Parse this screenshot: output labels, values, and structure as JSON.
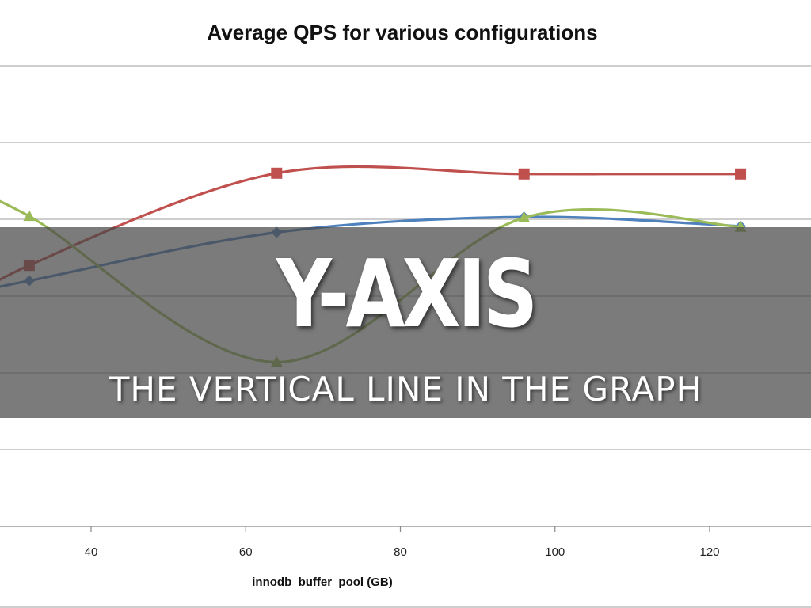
{
  "chart_data": {
    "type": "line",
    "title": "Average QPS for various configurations",
    "xlabel": "innodb_buffer_pool (GB)",
    "ylabel": "",
    "x_ticks": [
      40,
      60,
      80,
      100,
      120
    ],
    "xlim": [
      20,
      150
    ],
    "ylim": [
      0,
      7
    ],
    "grid": true,
    "smooth": true,
    "x_start": 20,
    "series": [
      {
        "color": "#c0504d",
        "marker": "square",
        "x": [
          32,
          64,
          96,
          124
        ],
        "y": [
          3.4,
          4.6,
          4.59,
          4.59
        ]
      },
      {
        "color": "#4f81bd",
        "marker": "diamond",
        "x": [
          32,
          64,
          96,
          124
        ],
        "y": [
          3.2,
          3.83,
          4.03,
          3.91
        ]
      },
      {
        "color": "#9bbb59",
        "marker": "triangle",
        "x": [
          32,
          64,
          96,
          124
        ],
        "y": [
          4.04,
          2.14,
          4.02,
          3.9
        ]
      }
    ]
  },
  "overlay": {
    "heading": "Y-AXIS",
    "subheading": "THE VERTICAL LINE IN THE GRAPH"
  }
}
